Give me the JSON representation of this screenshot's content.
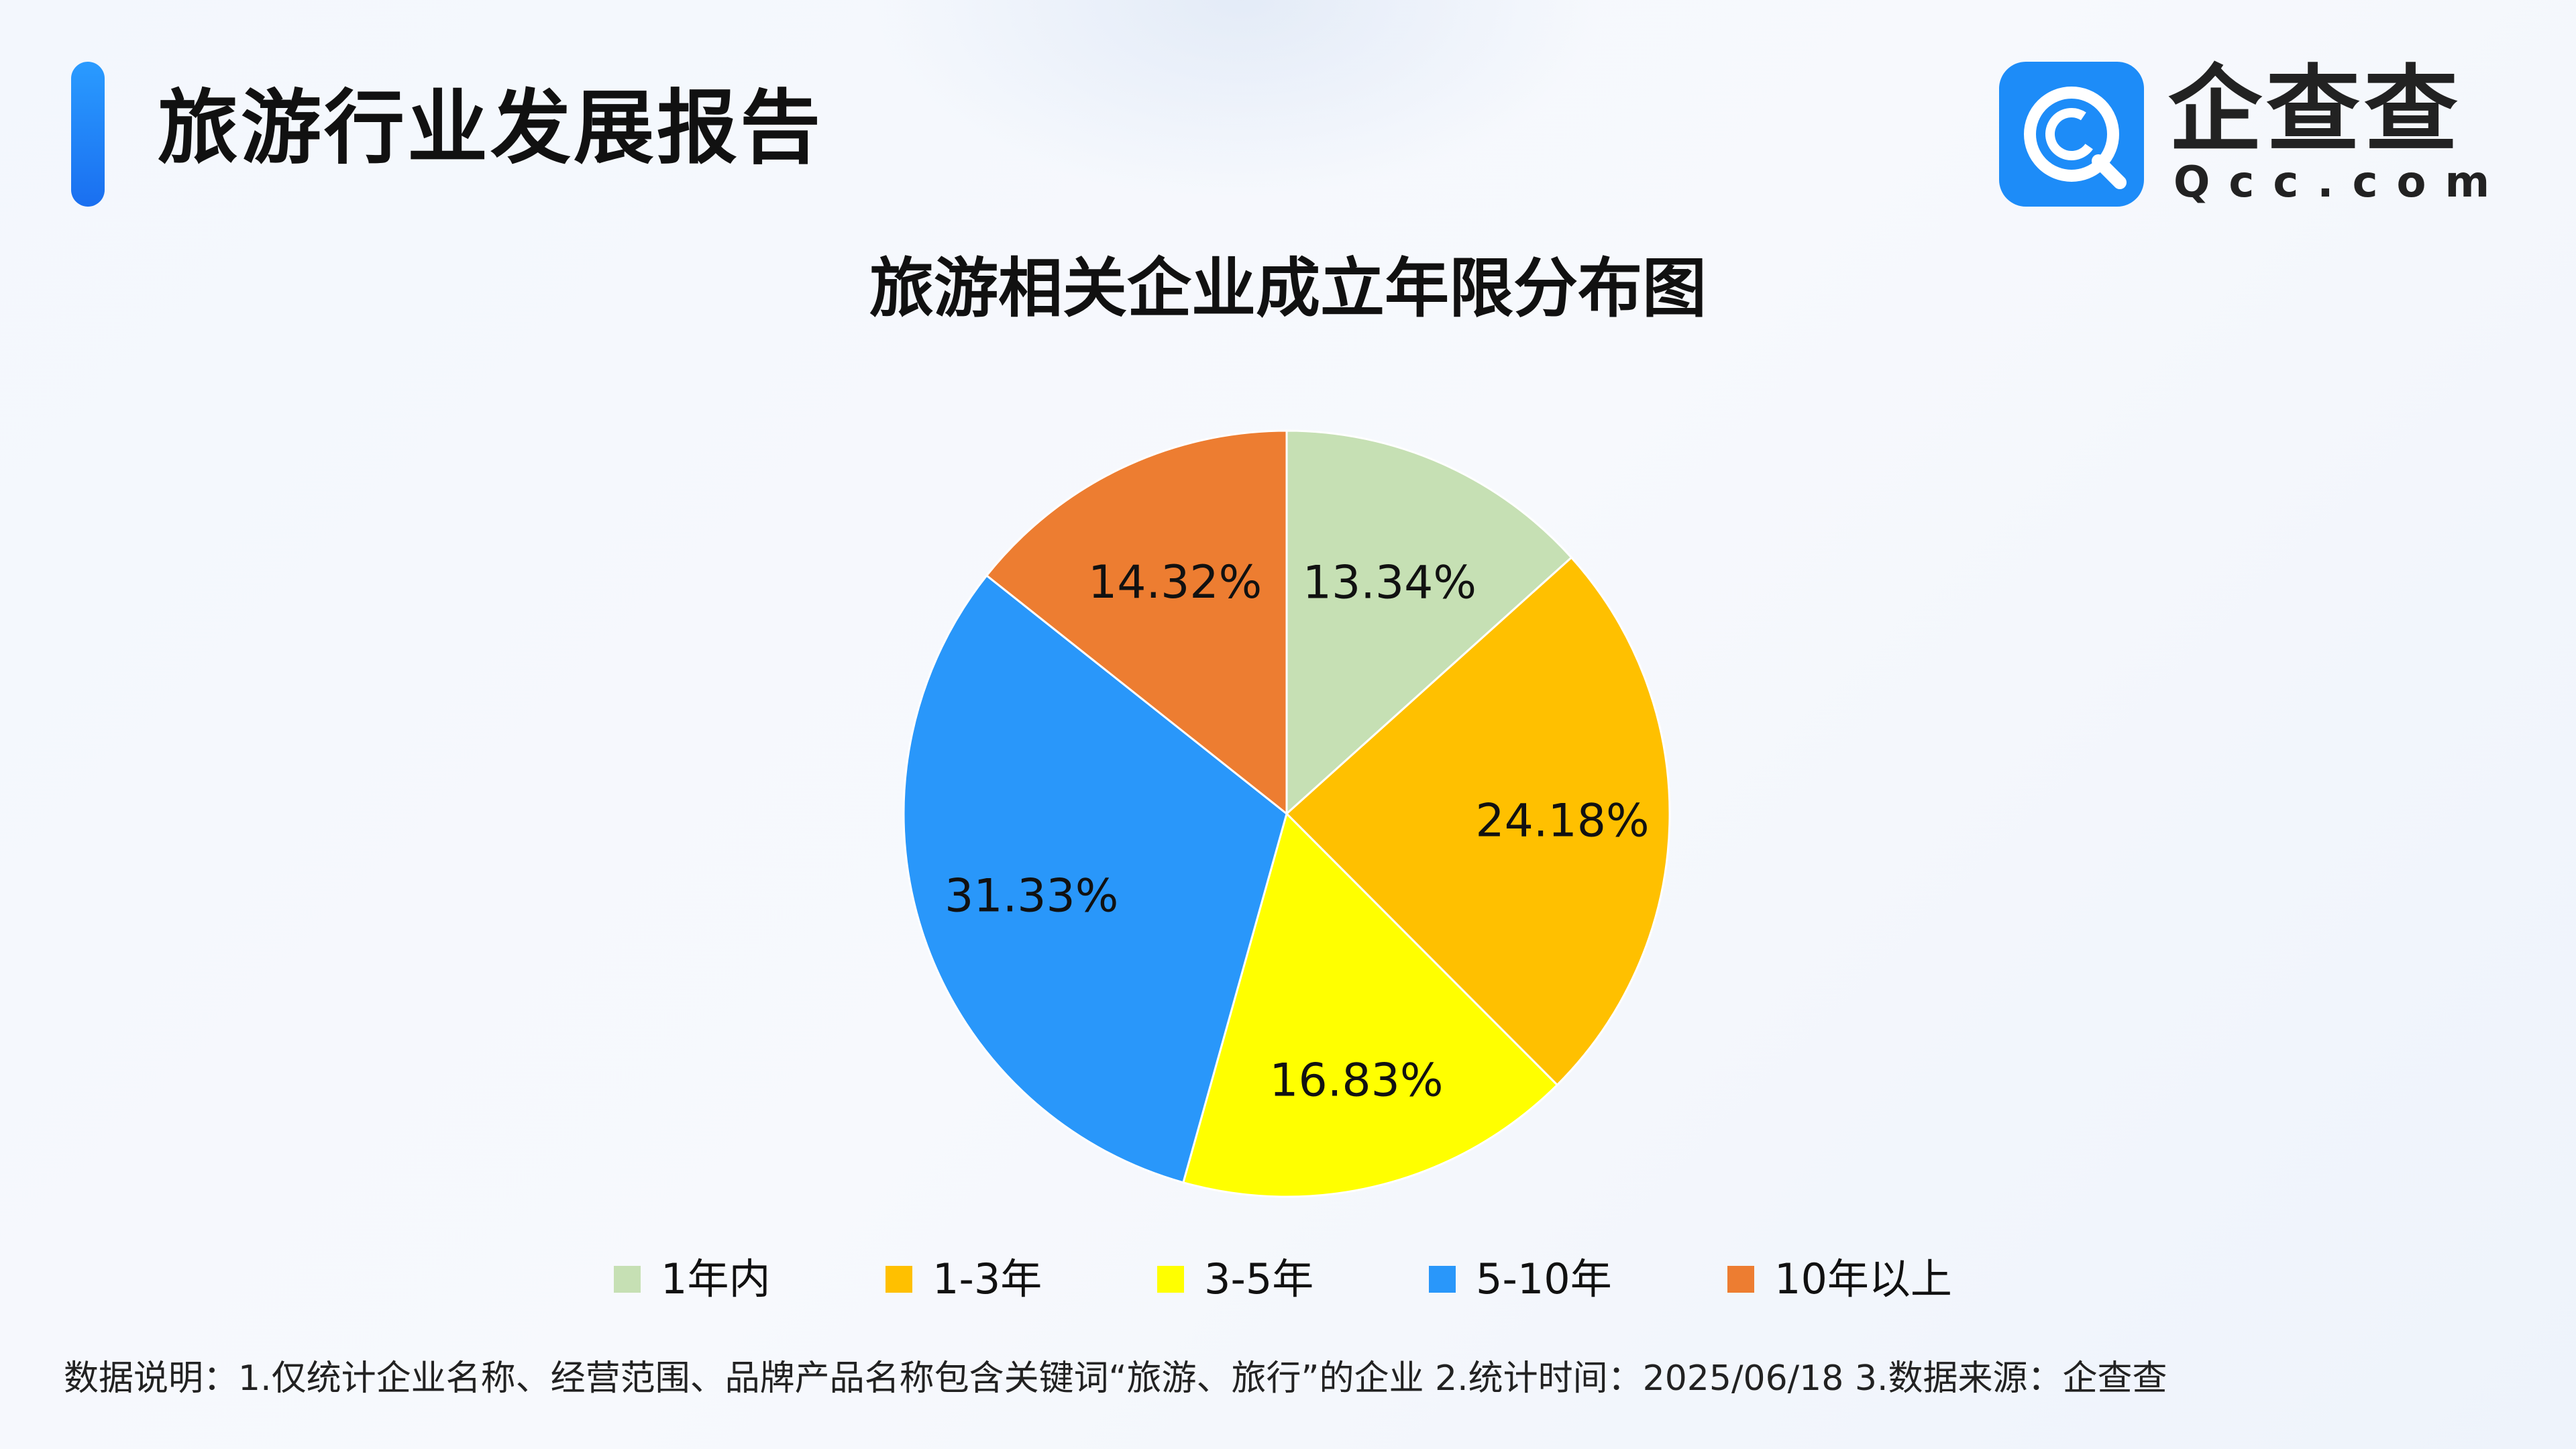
{
  "header": {
    "title": "旅游行业发展报告"
  },
  "logo": {
    "name_cn": "企查查",
    "name_en": "Qcc.com"
  },
  "colors": {
    "accent": "#1d8cf8"
  },
  "chart_data": {
    "type": "pie",
    "title": "旅游相关企业成立年限分布图",
    "legend_position": "bottom",
    "categories": [
      "1年内",
      "1-3年",
      "3-5年",
      "5-10年",
      "10年以上"
    ],
    "values": [
      13.34,
      24.18,
      16.83,
      31.33,
      14.32
    ],
    "labels": [
      "13.34%",
      "24.18%",
      "16.83%",
      "31.33%",
      "14.32%"
    ],
    "colors": [
      "#c6e0b4",
      "#ffc000",
      "#ffff00",
      "#2997fa",
      "#ed7d31"
    ]
  },
  "footer": {
    "note": "数据说明：1.仅统计企业名称、经营范围、品牌产品名称包含关键词“旅游、旅行”的企业   2.统计时间：2025/06/18    3.数据来源：企查查"
  }
}
